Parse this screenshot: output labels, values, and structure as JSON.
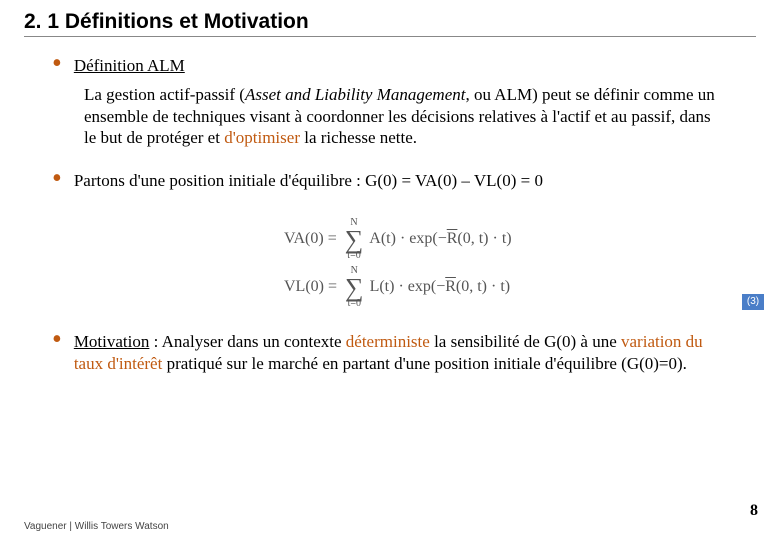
{
  "colors": {
    "text": "#000000",
    "accent_orange": "#c05a11",
    "badge_bg": "#4a7ec8",
    "badge_text": "#ffffff",
    "formula_gray": "#555555",
    "rule": "#888888"
  },
  "title": "2. 1 Définitions et Motivation",
  "bullet1": {
    "dot_color": "#c05a11",
    "heading": "Définition ALM",
    "body_pre": "La gestion actif-passif (",
    "body_italic": "Asset and Liability Management",
    "body_mid": ", ou ALM) peut se définir comme un ensemble de techniques visant à coordonner les décisions relatives à l'actif et au passif, dans le but de protéger et ",
    "body_orange": "d'optimiser",
    "body_post": " la richesse nette."
  },
  "bullet2": {
    "dot_color": "#c05a11",
    "text": "Partons d'une position initiale d'équilibre : G(0) = VA(0) – VL(0) = 0"
  },
  "badge": "(3)",
  "formulas": {
    "row1": {
      "lhs": "VA(0) = ",
      "sigma_top": "N",
      "sigma_bot": "t=0",
      "rhs_a": "A(t) · exp(−",
      "rhs_r": "R",
      "rhs_b": "(0, t) · t)"
    },
    "row2": {
      "lhs": "VL(0) = ",
      "sigma_top": "N",
      "sigma_bot": "t=0",
      "rhs_a": "L(t) · exp(−",
      "rhs_r": "R",
      "rhs_b": "(0, t) · t)"
    }
  },
  "bullet3": {
    "dot_color": "#c05a11",
    "heading": "Motivation",
    "p1": " : Analyser dans un contexte ",
    "w1": "déterministe",
    "p2": " la sensibilité de G(0) à une ",
    "w2": "variation du taux d'intérêt",
    "p3": " pratiqué sur le marché en partant d'une position initiale d'équilibre (G(0)=0)."
  },
  "footer": "Vaguener | Willis Towers Watson",
  "page_number": "8"
}
